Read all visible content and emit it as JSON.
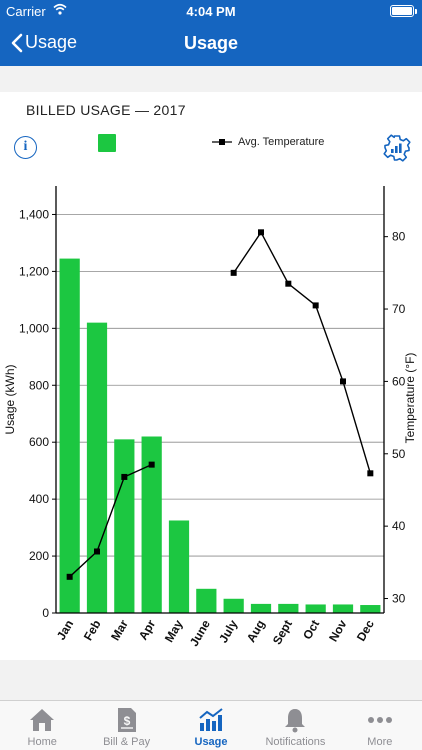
{
  "status": {
    "carrier": "Carrier",
    "time": "4:04 PM"
  },
  "nav": {
    "back_label": "Usage",
    "title": "Usage"
  },
  "section_title": "BILLED USAGE — 2017",
  "legend": {
    "usage_label": "",
    "temp_label": "Avg. Temperature"
  },
  "colors": {
    "brand": "#1565c0",
    "bar": "#1cc741",
    "tab_inactive": "#8e8e93"
  },
  "chart_data": {
    "type": "bar",
    "categories": [
      "Jan",
      "Feb",
      "Mar",
      "Apr",
      "May",
      "June",
      "July",
      "Aug",
      "Sept",
      "Oct",
      "Nov",
      "Dec"
    ],
    "series": [
      {
        "name": "",
        "type": "bar",
        "axis": "left",
        "values": [
          1245,
          1020,
          610,
          620,
          325,
          85,
          50,
          32,
          32,
          30,
          30,
          28
        ]
      },
      {
        "name": "Avg. Temperature",
        "type": "line",
        "axis": "right",
        "values": [
          33.0,
          36.5,
          46.8,
          48.5,
          null,
          null,
          75.0,
          80.6,
          73.5,
          70.5,
          60.0,
          47.3
        ]
      }
    ],
    "ylabel": "Usage (kWh)",
    "y2label": "Temperature (°F)",
    "ylim": [
      0,
      1500
    ],
    "y2lim": [
      28,
      87
    ],
    "yticks": [
      "0",
      "200",
      "400",
      "600",
      "800",
      "1,000",
      "1,200",
      "1,400"
    ],
    "y2ticks": [
      "30",
      "40",
      "50",
      "60",
      "70",
      "80"
    ],
    "grid": true,
    "legend_position": "top"
  },
  "tabs": [
    {
      "label": "Home",
      "icon": "home-icon"
    },
    {
      "label": "Bill & Pay",
      "icon": "bill-icon"
    },
    {
      "label": "Usage",
      "icon": "usage-chart-icon",
      "active": true
    },
    {
      "label": "Notifications",
      "icon": "bell-icon"
    },
    {
      "label": "More",
      "icon": "more-icon"
    }
  ]
}
